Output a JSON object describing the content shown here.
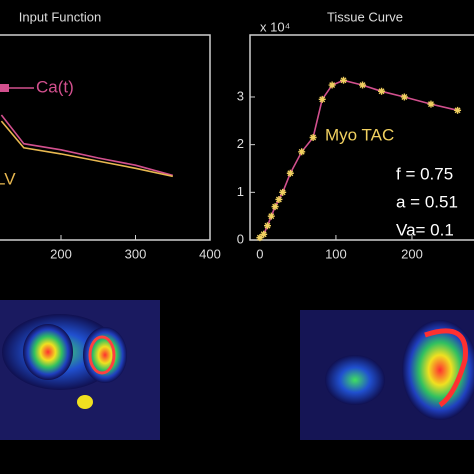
{
  "chart_data": [
    {
      "type": "line",
      "title": "Input Function",
      "xlim": [
        0,
        400
      ],
      "xticks": [
        200,
        300,
        400
      ],
      "ylim": [
        0,
        100
      ],
      "series": [
        {
          "name": "Ca(t)",
          "color": "#d2508e",
          "x": [
            120,
            150,
            200,
            250,
            300,
            350
          ],
          "values": [
            61,
            47,
            44,
            40,
            36.5,
            31.5
          ]
        },
        {
          "name": "LV",
          "color": "#e8b850",
          "x": [
            120,
            150,
            200,
            250,
            300,
            350
          ],
          "values": [
            58,
            45,
            42,
            38.5,
            35,
            31
          ]
        }
      ]
    },
    {
      "type": "line",
      "title": "Tissue Curve",
      "y_multiplier": "x 10⁴",
      "xlim": [
        -13,
        300
      ],
      "xticks": [
        0,
        100,
        200
      ],
      "ylim": [
        0,
        4.3
      ],
      "yticks": [
        0,
        1,
        2,
        3
      ],
      "series": [
        {
          "name": "Myo TAC",
          "color": "#d2508e",
          "marker_color": "#f0d060",
          "x": [
            0,
            5,
            10,
            15,
            20,
            25,
            30,
            40,
            55,
            70,
            82,
            95,
            110,
            135,
            160,
            190,
            225,
            260
          ],
          "values": [
            0.05,
            0.12,
            0.3,
            0.5,
            0.7,
            0.85,
            1.0,
            1.4,
            1.85,
            2.15,
            2.95,
            3.25,
            3.35,
            3.25,
            3.12,
            3.0,
            2.85,
            2.72
          ]
        }
      ],
      "annotations": [
        "f = 0.75",
        "a = 0.51",
        "Va= 0.1"
      ]
    }
  ]
}
